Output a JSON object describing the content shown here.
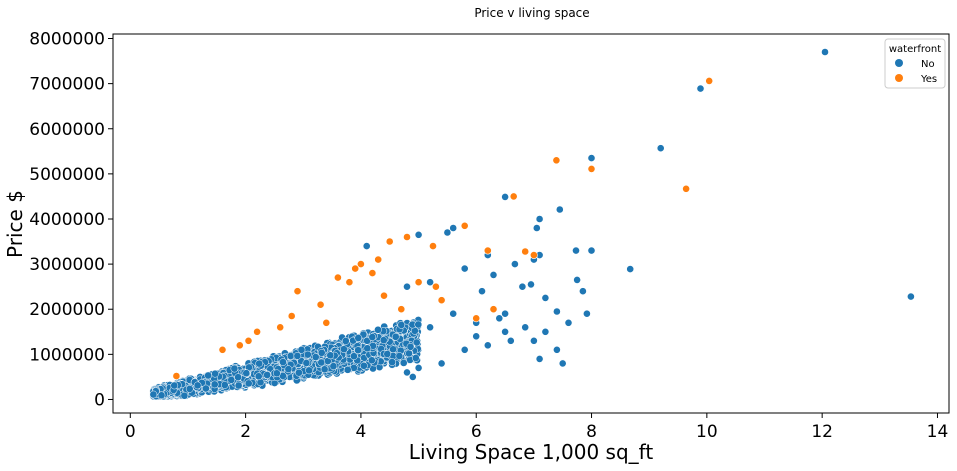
{
  "chart_data": {
    "type": "scatter",
    "title": "Price v living space",
    "xlabel": "Living Space 1,000 sq_ft",
    "ylabel": "Price $",
    "xlim": [
      -0.3,
      14.2
    ],
    "ylim": [
      -300000,
      8100000
    ],
    "xticks": [
      0,
      2,
      4,
      6,
      8,
      10,
      12,
      14
    ],
    "yticks": [
      0,
      1000000,
      2000000,
      3000000,
      4000000,
      5000000,
      6000000,
      7000000,
      8000000
    ],
    "grid": false,
    "legend": {
      "title": "waterfront",
      "placement": "top-right",
      "entries": [
        "No",
        "Yes"
      ]
    },
    "series": [
      {
        "name": "No",
        "color": "#1f77b4",
        "points": [
          [
            12.05,
            7700000
          ],
          [
            9.89,
            6890000
          ],
          [
            9.2,
            5570000
          ],
          [
            8.0,
            5350000
          ],
          [
            13.54,
            2280000
          ],
          [
            8.67,
            2890000
          ],
          [
            8.0,
            3300000
          ],
          [
            7.73,
            3300000
          ],
          [
            7.45,
            4210000
          ],
          [
            7.1,
            4000000
          ],
          [
            7.05,
            3800000
          ],
          [
            7.1,
            3200000
          ],
          [
            7.0,
            3100000
          ],
          [
            6.67,
            3000000
          ],
          [
            6.5,
            4490000
          ],
          [
            6.2,
            3200000
          ],
          [
            6.3,
            2760000
          ],
          [
            6.1,
            2400000
          ],
          [
            6.8,
            2500000
          ],
          [
            6.95,
            2550000
          ],
          [
            7.4,
            1950000
          ],
          [
            7.2,
            2250000
          ],
          [
            7.6,
            1700000
          ],
          [
            7.85,
            2400000
          ],
          [
            7.92,
            1900000
          ],
          [
            7.2,
            1500000
          ],
          [
            7.0,
            1300000
          ],
          [
            7.4,
            1100000
          ],
          [
            7.1,
            900000
          ],
          [
            7.5,
            800000
          ],
          [
            6.5,
            1900000
          ],
          [
            6.3,
            2000000
          ],
          [
            6.5,
            1500000
          ],
          [
            6.6,
            1300000
          ],
          [
            6.0,
            1400000
          ],
          [
            6.2,
            1200000
          ],
          [
            5.8,
            1100000
          ],
          [
            5.5,
            3700000
          ],
          [
            5.6,
            3800000
          ],
          [
            5.8,
            2900000
          ],
          [
            5.0,
            3650000
          ],
          [
            4.1,
            3400000
          ],
          [
            5.2,
            2600000
          ],
          [
            4.8,
            2500000
          ],
          [
            5.6,
            1900000
          ],
          [
            5.2,
            1600000
          ],
          [
            5.0,
            700000
          ],
          [
            4.8,
            600000
          ],
          [
            5.4,
            800000
          ],
          [
            4.9,
            500000
          ],
          [
            8.0,
            3300000
          ],
          [
            7.75,
            2650000
          ],
          [
            6.0,
            1700000
          ],
          [
            6.4,
            1800000
          ],
          [
            6.85,
            1600000
          ]
        ]
      },
      {
        "name": "Yes",
        "color": "#ff7f0e",
        "points": [
          [
            10.04,
            7060000
          ],
          [
            7.39,
            5300000
          ],
          [
            8.0,
            5110000
          ],
          [
            9.64,
            4670000
          ],
          [
            6.65,
            4500000
          ],
          [
            5.8,
            3850000
          ],
          [
            6.2,
            3300000
          ],
          [
            6.85,
            3280000
          ],
          [
            7.0,
            3200000
          ],
          [
            4.8,
            3600000
          ],
          [
            5.25,
            3400000
          ],
          [
            4.5,
            3500000
          ],
          [
            4.3,
            3100000
          ],
          [
            4.0,
            3000000
          ],
          [
            3.9,
            2900000
          ],
          [
            3.6,
            2700000
          ],
          [
            4.2,
            2800000
          ],
          [
            3.8,
            2600000
          ],
          [
            5.0,
            2600000
          ],
          [
            5.3,
            2500000
          ],
          [
            6.0,
            1800000
          ],
          [
            6.3,
            2000000
          ],
          [
            2.9,
            2400000
          ],
          [
            3.3,
            2100000
          ],
          [
            2.6,
            1600000
          ],
          [
            2.2,
            1500000
          ],
          [
            1.9,
            1200000
          ],
          [
            1.6,
            1100000
          ],
          [
            4.4,
            2300000
          ],
          [
            5.4,
            2200000
          ],
          [
            4.7,
            2000000
          ],
          [
            0.8,
            520000
          ],
          [
            2.05,
            1300000
          ],
          [
            2.8,
            1850000
          ],
          [
            3.4,
            1700000
          ]
        ]
      }
    ]
  }
}
